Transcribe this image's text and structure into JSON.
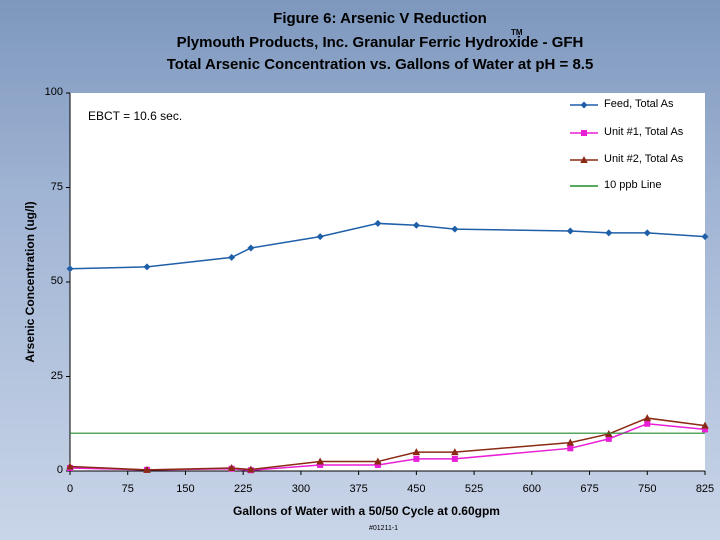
{
  "titles": {
    "line1": "Figure 6:  Arsenic V Reduction",
    "line2": "Plymouth Products, Inc. Granular Ferric Hydroxide - GFH",
    "line2_mark": "TM",
    "line3": "Total Arsenic Concentration vs. Gallons of Water at pH = 8.5"
  },
  "annotation": "EBCT = 10.6 sec.",
  "footnote": "#01211-1",
  "colors": {
    "feed": "#1f5fa8",
    "unit1": "#e81fd6",
    "unit2": "#8b2a14",
    "ppb": "#1f8a2a"
  },
  "chart_data": {
    "type": "line",
    "xlabel": "Gallons of Water with a 50/50 Cycle at 0.60gpm",
    "ylabel": "Arsenic Concentration (ug/l)",
    "xlim": [
      0,
      825
    ],
    "ylim": [
      0,
      100
    ],
    "xticks": [
      "0",
      "75",
      "150",
      "225",
      "300",
      "375",
      "450",
      "525",
      "600",
      "675",
      "750",
      "825"
    ],
    "yticks": [
      "0",
      "25",
      "50",
      "75",
      "100"
    ],
    "legend_position": "top-right",
    "series": [
      {
        "name": "Feed, Total As",
        "marker": "diamond",
        "x": [
          0,
          100,
          210,
          235,
          325,
          400,
          450,
          500,
          650,
          700,
          750,
          825
        ],
        "y": [
          53.5,
          54,
          56.5,
          59,
          62,
          65.5,
          65,
          64,
          63.5,
          63,
          63,
          62
        ]
      },
      {
        "name": "Unit #1, Total As",
        "marker": "square",
        "x": [
          0,
          100,
          210,
          235,
          325,
          400,
          450,
          500,
          650,
          700,
          750,
          825
        ],
        "y": [
          0.8,
          0.3,
          0.6,
          0.2,
          1.6,
          1.6,
          3.2,
          3.2,
          6,
          8.5,
          12.5,
          11
        ]
      },
      {
        "name": "Unit #2, Total As",
        "marker": "triangle",
        "x": [
          0,
          100,
          210,
          235,
          325,
          400,
          450,
          500,
          650,
          700,
          750,
          825
        ],
        "y": [
          1.2,
          0.3,
          0.8,
          0.4,
          2.5,
          2.5,
          5,
          5,
          7.5,
          9.8,
          14,
          12
        ]
      },
      {
        "name": "10 ppb Line",
        "marker": "none",
        "x": [
          0,
          825
        ],
        "y": [
          10,
          10
        ]
      }
    ]
  }
}
